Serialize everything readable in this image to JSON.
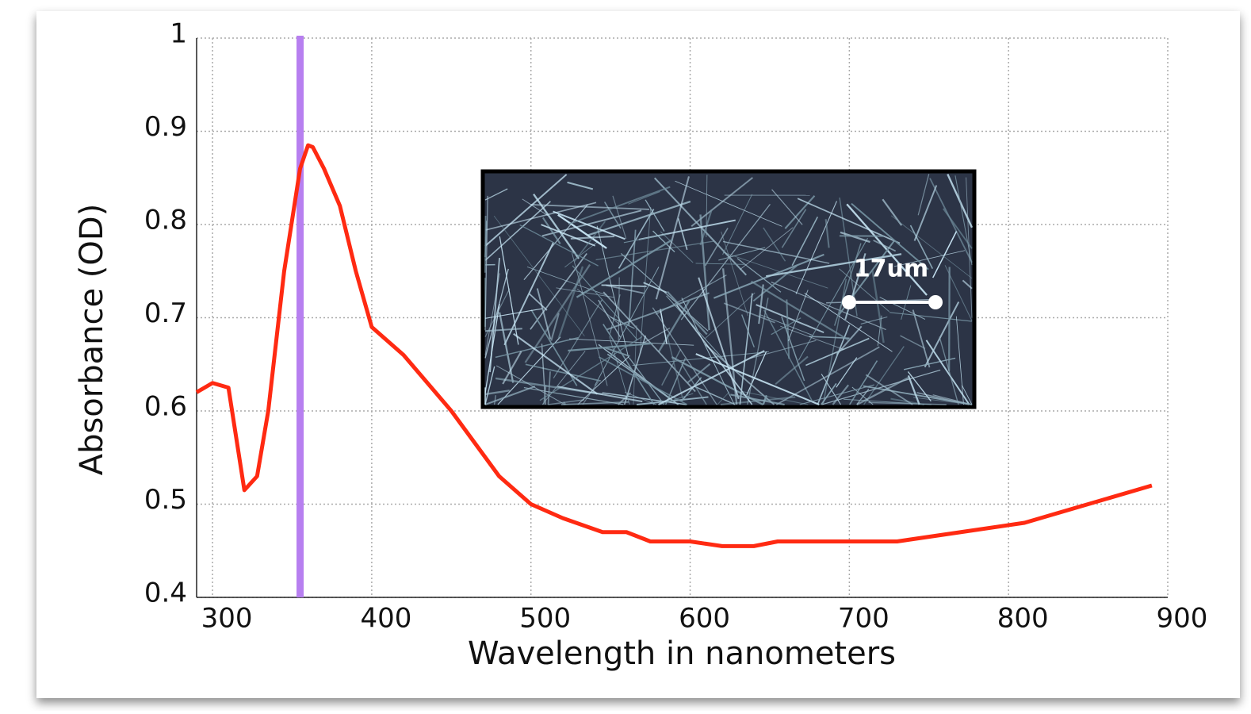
{
  "chart_data": {
    "type": "line",
    "x_label": "Wavelength in nanometers",
    "y_label": "Absorbance (OD)",
    "xlim": [
      290,
      900
    ],
    "ylim": [
      0.4,
      1
    ],
    "xticks": [
      300,
      400,
      500,
      600,
      700,
      800,
      900
    ],
    "yticks": [
      0.4,
      0.5,
      0.6,
      0.7,
      0.8,
      0.9,
      1
    ],
    "grid": true,
    "marker_x": 355,
    "marker_color": "#b77ff0",
    "inset_label": "17um",
    "series": [
      {
        "color": "#ff2a12",
        "x": [
          290,
          300,
          310,
          315,
          320,
          328,
          335,
          345,
          355,
          360,
          363,
          370,
          380,
          390,
          400,
          420,
          450,
          480,
          500,
          520,
          545,
          560,
          575,
          600,
          620,
          640,
          655,
          700,
          730,
          770,
          810,
          850,
          890
        ],
        "values": [
          0.62,
          0.63,
          0.625,
          0.57,
          0.515,
          0.53,
          0.6,
          0.75,
          0.86,
          0.885,
          0.883,
          0.86,
          0.82,
          0.75,
          0.69,
          0.66,
          0.6,
          0.53,
          0.5,
          0.485,
          0.47,
          0.47,
          0.46,
          0.46,
          0.455,
          0.455,
          0.46,
          0.46,
          0.46,
          0.47,
          0.48,
          0.5,
          0.52
        ]
      }
    ]
  }
}
